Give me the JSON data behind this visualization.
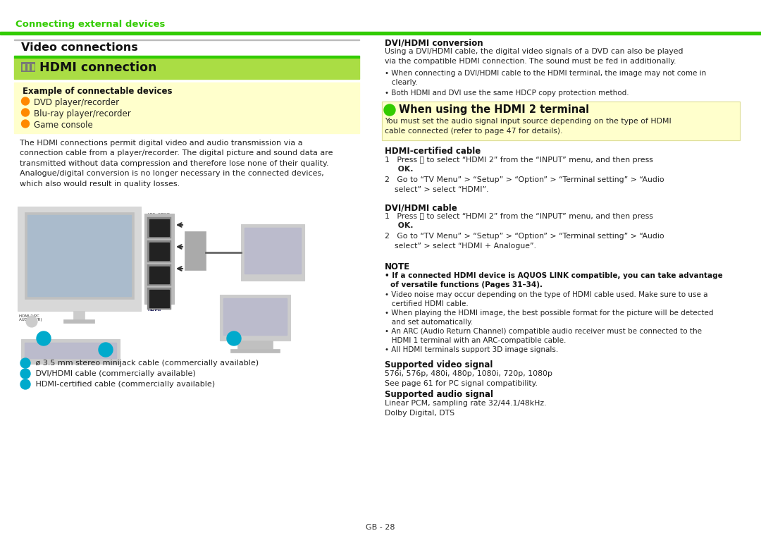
{
  "page_bg": "#ffffff",
  "green_color": "#33cc00",
  "green_line_color": "#33cc00",
  "green_section_bg": "#aadd44",
  "yellow_box_bg": "#ffffcc",
  "orange_bullet": "#ff8800",
  "cyan_bullet": "#00aacc",
  "dark_text": "#222222",
  "top_header": "Connecting external devices",
  "section_title": "Video connections",
  "hdmi_title": "HDMI connection",
  "example_box_title": "Example of connectable devices",
  "example_bullets": [
    "DVD player/recorder",
    "Blu-ray player/recorder",
    "Game console"
  ],
  "body_text": "The HDMI connections permit digital video and audio transmission via a\nconnection cable from a player/recorder. The digital picture and sound data are\ntransmitted without data compression and therefore lose none of their quality.\nAnalogue/digital conversion is no longer necessary in the connected devices,\nwhich also would result in quality losses.",
  "caption1": " ø 3.5 mm stereo minijack cable (commercially available)",
  "caption2": " DVI/HDMI cable (commercially available)",
  "caption3": " HDMI-certified cable (commercially available)",
  "right_col_title1": "DVI/HDMI conversion",
  "right_col_body1": "Using a DVI/HDMI cable, the digital video signals of a DVD can also be played\nvia the compatible HDMI connection. The sound must be fed in additionally.",
  "right_col_bullet1": "When connecting a DVI/HDMI cable to the HDMI terminal, the image may not come in\n   clearly.",
  "right_col_bullet2": "Both HDMI and DVI use the same HDCP copy protection method.",
  "when_title": "When using the HDMI 2 terminal",
  "when_body": "You must set the audio signal input source depending on the type of HDMI\ncable connected (refer to page 47 for details).",
  "hdmi_cert_title": "HDMI-certified cable",
  "step1a_pre": "1   Press ",
  "step1a_post": " to select “HDMI 2” from the “INPUT” menu, and then press",
  "step1a_ok": "    OK.",
  "step2a": "2   Go to “TV Menu” > “Setup” > “Option” > “Terminal setting” > “Audio\n    select” > select “HDMI”.",
  "dvi_hdmi_cable_title": "DVI/HDMI cable",
  "step1b_pre": "1   Press ",
  "step1b_post": " to select “HDMI 2” from the “INPUT” menu, and then press",
  "step1b_ok": "    OK.",
  "step2b": "2   Go to “TV Menu” > “Setup” > “Option” > “Terminal setting” > “Audio\n    select” > select “HDMI + Analogue”.",
  "note_title": "NOTE",
  "note_bullet1_bold": "If a connected HDMI device is AQUOS LINK compatible, you can take advantage",
  "note_bullet1_bold2": "of versatile functions (Pages 31–34).",
  "note_bullet2": "Video noise may occur depending on the type of HDMI cable used. Make sure to use a\n   certified HDMI cable.",
  "note_bullet3": "When playing the HDMI image, the best possible format for the picture will be detected\n   and set automatically.",
  "note_bullet4": "An ARC (Audio Return Channel) compatible audio receiver must be connected to the\n   HDMI 1 terminal with an ARC-compatible cable.",
  "note_bullet5": "All HDMI terminals support 3D image signals.",
  "supported_video_title": "Supported video signal",
  "supported_video_body": "576i, 576p, 480i, 480p, 1080i, 720p, 1080p\nSee page 61 for PC signal compatibility.",
  "supported_audio_title": "Supported audio signal",
  "supported_audio_body": "Linear PCM, sampling rate 32/44.1/48kHz.\nDolby Digital, DTS",
  "page_num": "GB - 28"
}
